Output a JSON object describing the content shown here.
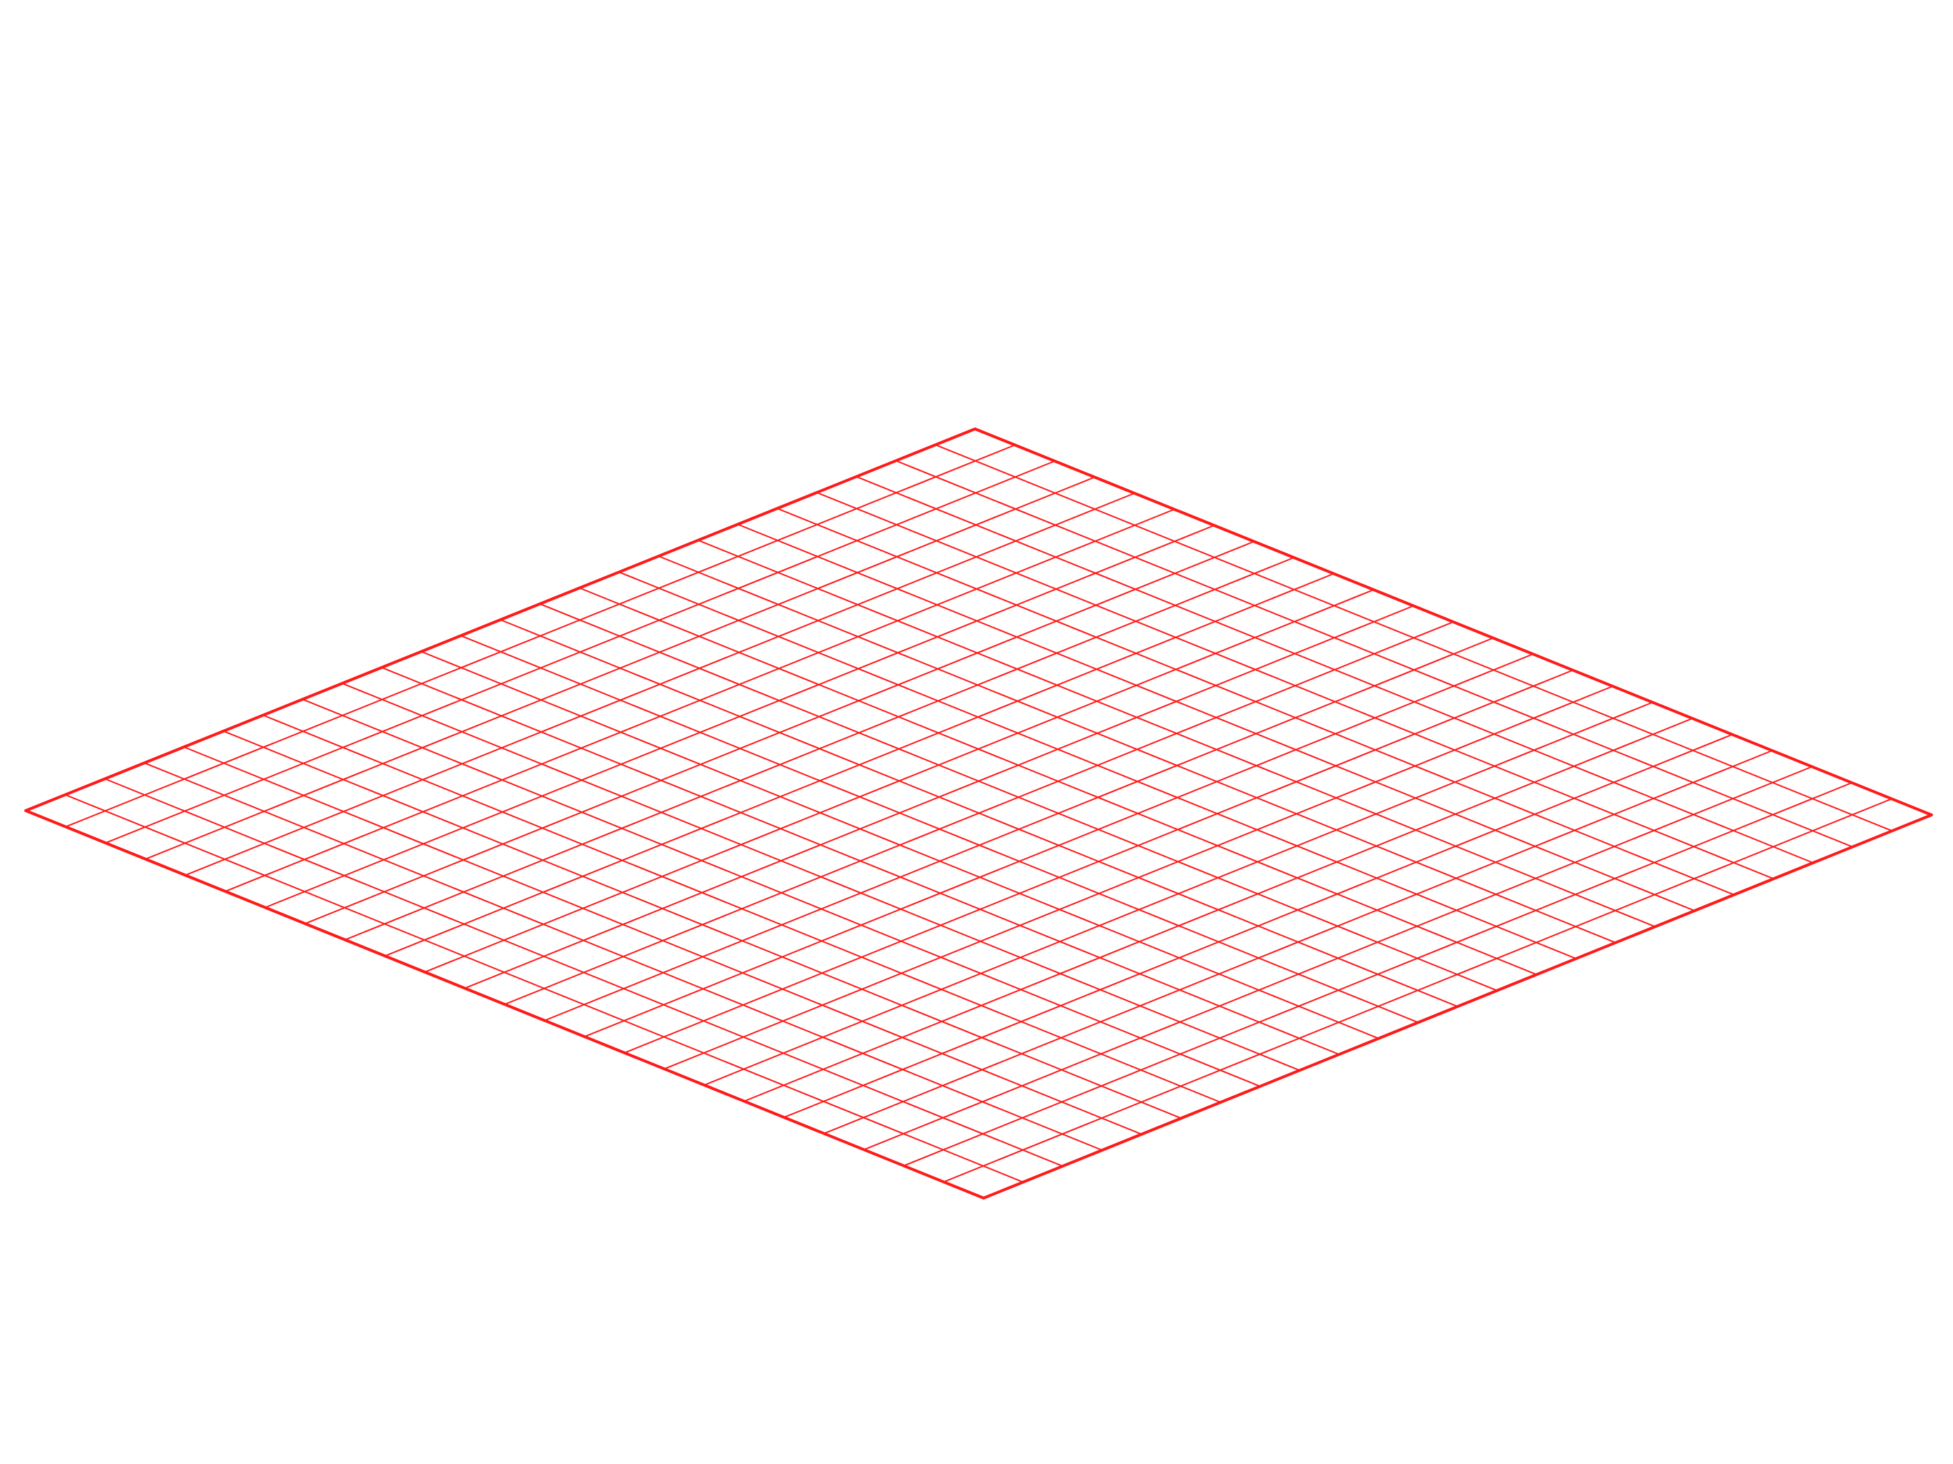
{
  "diagram": {
    "type": "isometric-grid",
    "line_color": "#ff1a1a",
    "background_color": "#ffffff",
    "divisions_front_edge": 24,
    "divisions_side_edge": 24
  }
}
